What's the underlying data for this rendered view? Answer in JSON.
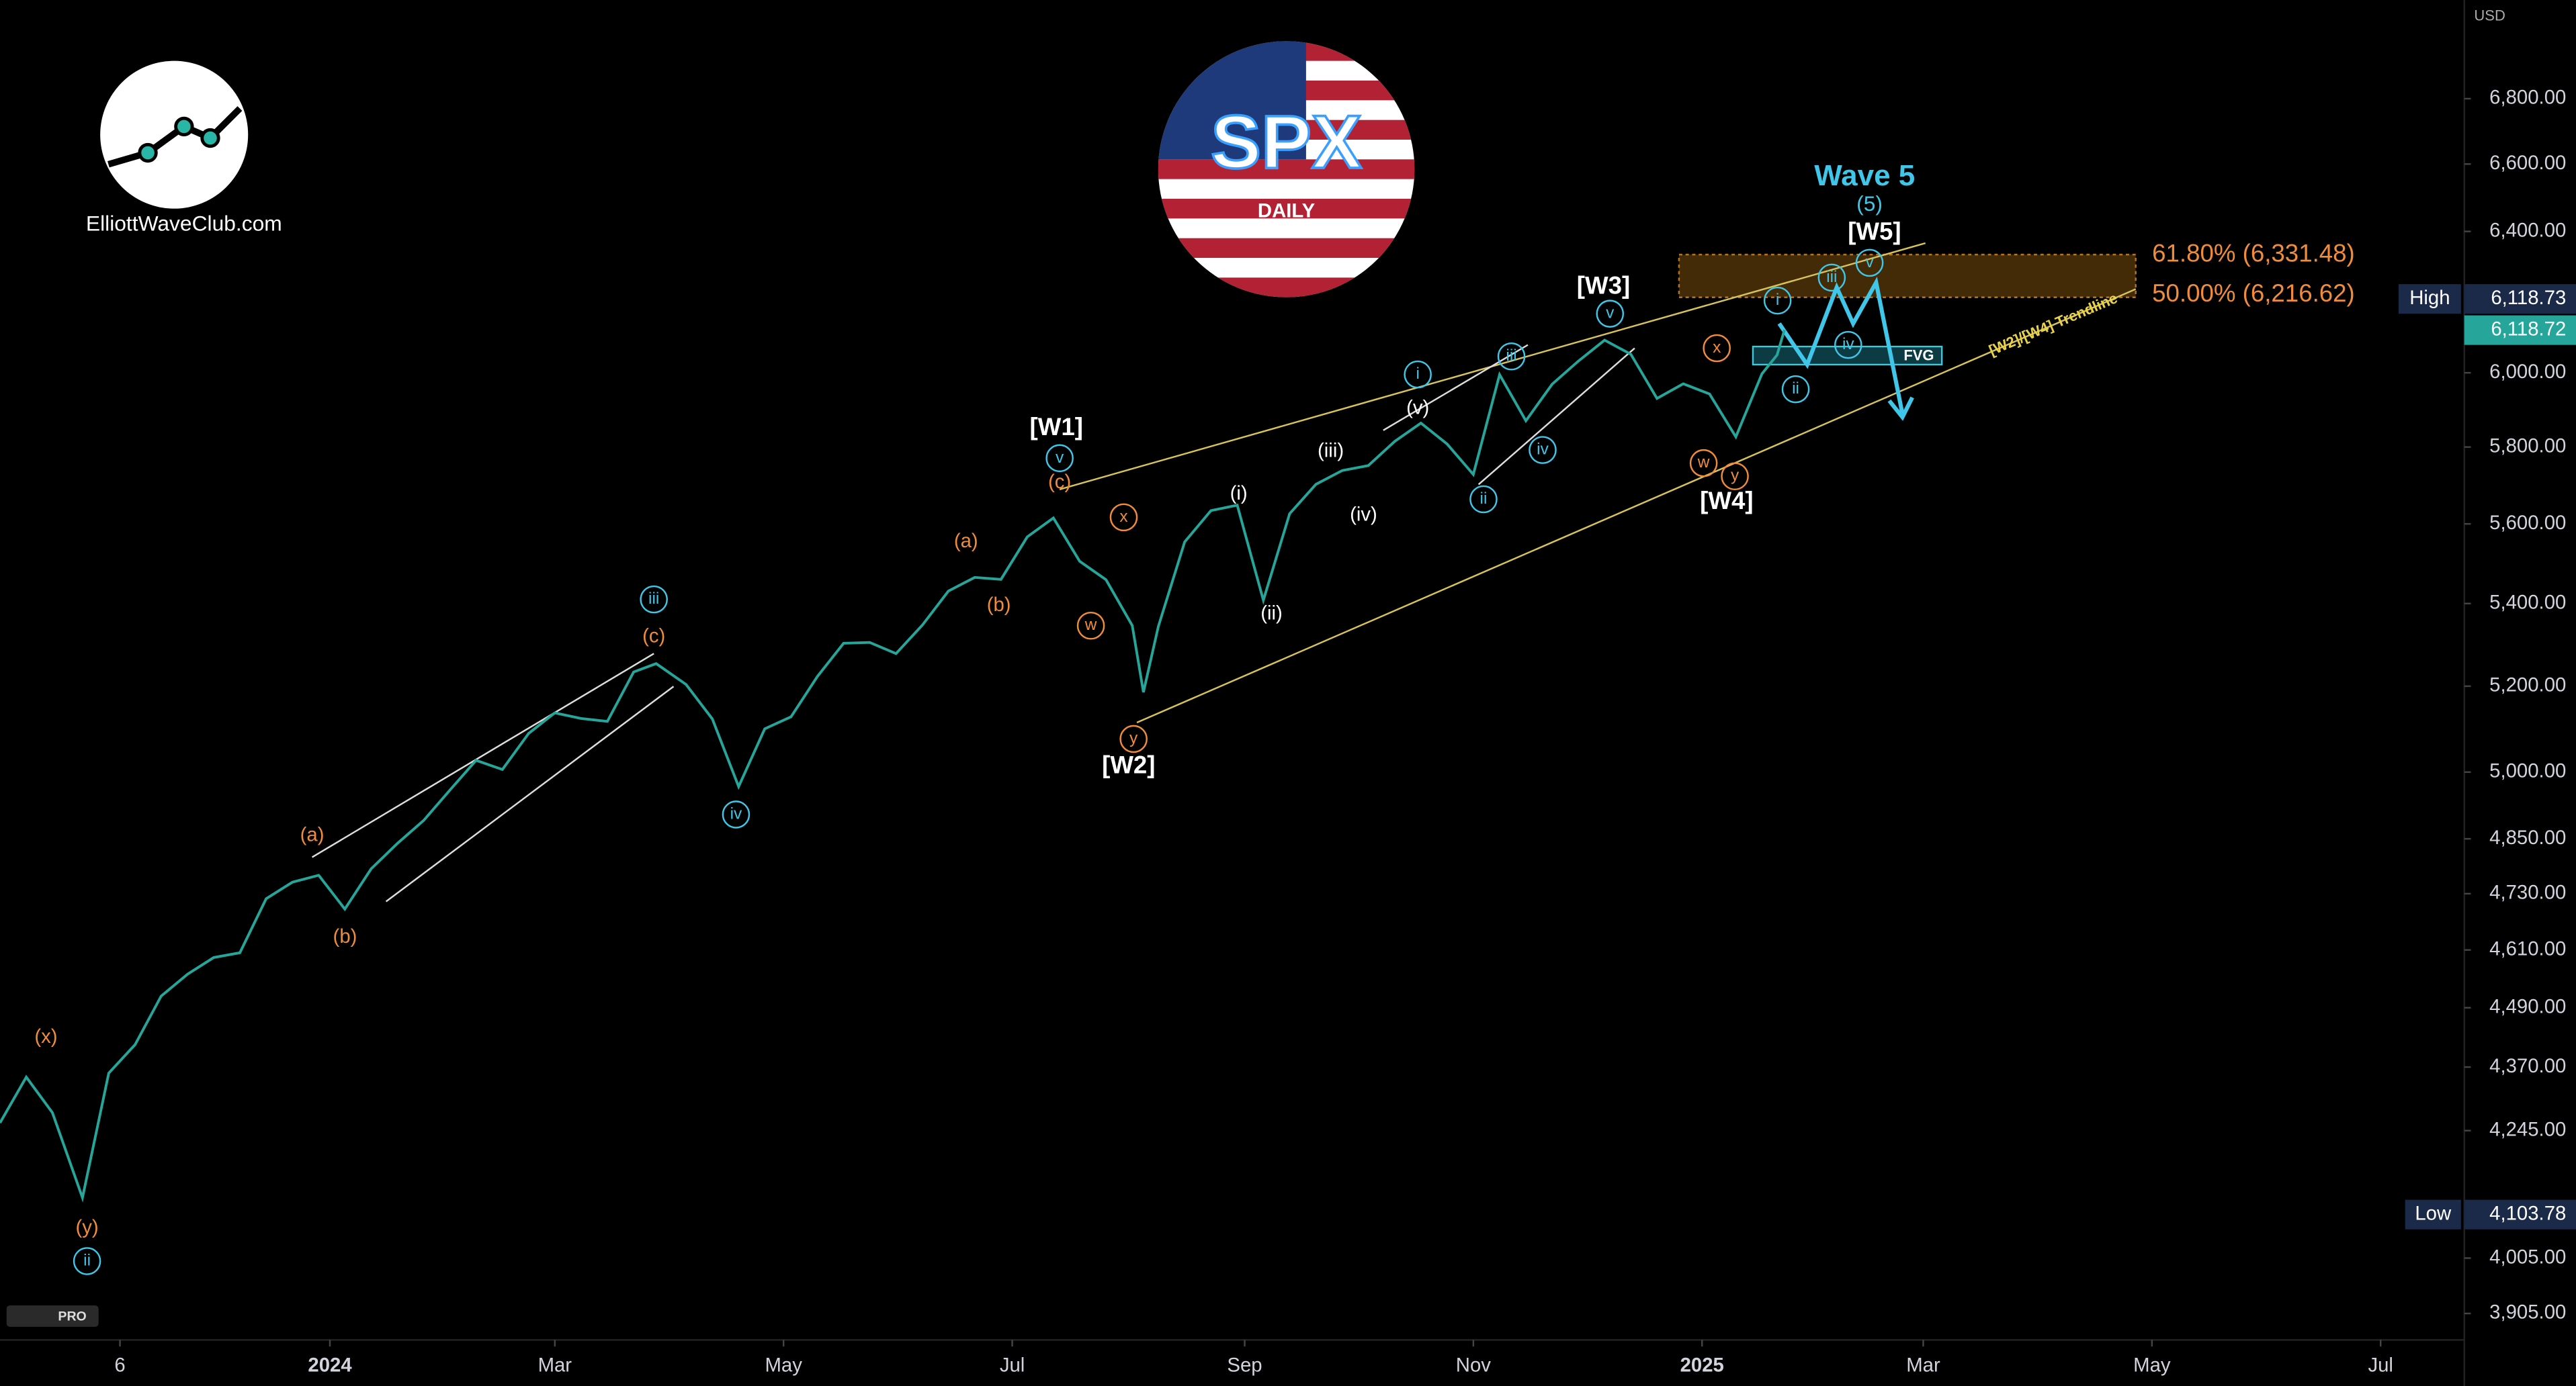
{
  "header": {
    "brand": "ElliottWaveClub.com",
    "logo_title": "SPX",
    "logo_subtitle": "DAILY",
    "badge": "PRO"
  },
  "chart_data": {
    "type": "line",
    "color": "#26a69a",
    "log_scale": true,
    "grid": false,
    "x": [
      "2023-10-05",
      "2023-10-12",
      "2023-10-19",
      "2023-10-27",
      "2023-11-03",
      "2023-11-10",
      "2023-11-17",
      "2023-11-24",
      "2023-12-01",
      "2023-12-08",
      "2023-12-15",
      "2023-12-22",
      "2023-12-29",
      "2024-01-05",
      "2024-01-12",
      "2024-01-19",
      "2024-01-26",
      "2024-02-02",
      "2024-02-09",
      "2024-02-16",
      "2024-02-23",
      "2024-03-01",
      "2024-03-08",
      "2024-03-15",
      "2024-03-22",
      "2024-03-28",
      "2024-04-05",
      "2024-04-12",
      "2024-04-19",
      "2024-04-26",
      "2024-05-03",
      "2024-05-10",
      "2024-05-17",
      "2024-05-24",
      "2024-05-31",
      "2024-06-07",
      "2024-06-14",
      "2024-06-21",
      "2024-06-28",
      "2024-07-05",
      "2024-07-12",
      "2024-07-19",
      "2024-07-26",
      "2024-08-02",
      "2024-08-05",
      "2024-08-09",
      "2024-08-16",
      "2024-08-23",
      "2024-08-30",
      "2024-09-06",
      "2024-09-13",
      "2024-09-20",
      "2024-09-27",
      "2024-10-04",
      "2024-10-11",
      "2024-10-18",
      "2024-10-25",
      "2024-11-01",
      "2024-11-08",
      "2024-11-15",
      "2024-11-22",
      "2024-11-29",
      "2024-12-06",
      "2024-12-13",
      "2024-12-20",
      "2024-12-27",
      "2025-01-03",
      "2025-01-10",
      "2025-01-17",
      "2025-01-21",
      "2025-01-23"
    ],
    "values": [
      4260,
      4350,
      4280,
      4117,
      4358,
      4415,
      4514,
      4559,
      4594,
      4604,
      4719,
      4755,
      4770,
      4697,
      4784,
      4840,
      4891,
      4959,
      5027,
      5006,
      5089,
      5137,
      5124,
      5117,
      5234,
      5254,
      5204,
      5123,
      4967,
      5100,
      5128,
      5223,
      5303,
      5305,
      5278,
      5347,
      5431,
      5465,
      5460,
      5567,
      5615,
      5505,
      5459,
      5346,
      5186,
      5344,
      5554,
      5634,
      5648,
      5408,
      5626,
      5702,
      5738,
      5751,
      5815,
      5864,
      5808,
      5728,
      5995,
      5870,
      5969,
      6032,
      6090,
      6051,
      5930,
      5970,
      5942,
      5827,
      5997,
      6049,
      6119
    ],
    "xlim": [
      "2023-10-05",
      "2025-07-22"
    ],
    "xticks": [
      {
        "value": "2023-11-06",
        "label": "6"
      },
      {
        "value": "2024-01-01",
        "label": "2024"
      },
      {
        "value": "2024-03-01",
        "label": "Mar"
      },
      {
        "value": "2024-05-01",
        "label": "May"
      },
      {
        "value": "2024-07-01",
        "label": "Jul"
      },
      {
        "value": "2024-09-01",
        "label": "Sep"
      },
      {
        "value": "2024-11-01",
        "label": "Nov"
      },
      {
        "value": "2025-01-01",
        "label": "2025"
      },
      {
        "value": "2025-03-01",
        "label": "Mar"
      },
      {
        "value": "2025-05-01",
        "label": "May"
      },
      {
        "value": "2025-07-01",
        "label": "Jul"
      }
    ],
    "ylim": [
      3861,
      7113
    ],
    "yticks": [
      {
        "value": 3905,
        "label": "3,905.00"
      },
      {
        "value": 4005,
        "label": "4,005.00"
      },
      {
        "value": 4245,
        "label": "4,245.00"
      },
      {
        "value": 4370,
        "label": "4,370.00"
      },
      {
        "value": 4490,
        "label": "4,490.00"
      },
      {
        "value": 4610,
        "label": "4,610.00"
      },
      {
        "value": 4730,
        "label": "4,730.00"
      },
      {
        "value": 4850,
        "label": "4,850.00"
      },
      {
        "value": 5000,
        "label": "5,000.00"
      },
      {
        "value": 5200,
        "label": "5,200.00"
      },
      {
        "value": 5400,
        "label": "5,400.00"
      },
      {
        "value": 5600,
        "label": "5,600.00"
      },
      {
        "value": 5800,
        "label": "5,800.00"
      },
      {
        "value": 6000,
        "label": "6,000.00"
      },
      {
        "value": 6400,
        "label": "6,400.00"
      },
      {
        "value": 6600,
        "label": "6,600.00"
      },
      {
        "value": 6800,
        "label": "6,800.00"
      }
    ],
    "currency": "USD",
    "high": {
      "name": "High",
      "value": 6118.73,
      "label": "6,118.73"
    },
    "last": {
      "value": 6118.72,
      "label": "6,118.72"
    },
    "low": {
      "name": "Low",
      "value": 4103.78,
      "label": "4,103.78"
    },
    "fib_levels": [
      {
        "value": 6331.48,
        "label": "61.80% (6,331.48)"
      },
      {
        "value": 6216.62,
        "label": "50.00% (6,216.62)"
      }
    ],
    "annotations": [
      "Wave 5",
      "(5)",
      "[W5]",
      "[W3]",
      "[W1]",
      "[W2]",
      "[W4]",
      "[W2]/[W4] Trendline",
      "FVG"
    ],
    "wave_labels": [
      "v",
      "(c)",
      "(a)",
      "(b)",
      "x",
      "w",
      "y",
      "(i)",
      "(ii)",
      "(iii)",
      "(iv)",
      "(v)",
      "i",
      "ii",
      "iii",
      "iv",
      "v",
      "x",
      "w",
      "y",
      "i",
      "ii",
      "iii",
      "iv",
      "v",
      "iii",
      "(c)",
      "(a)",
      "(b)",
      "iv",
      "(x)",
      "(y)",
      "ii"
    ]
  }
}
